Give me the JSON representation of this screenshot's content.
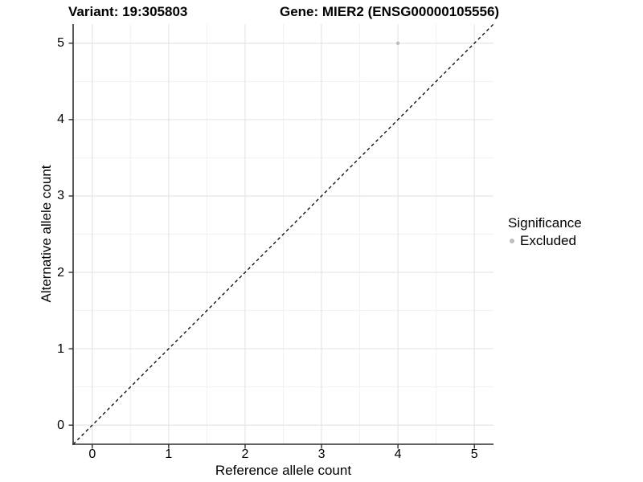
{
  "titles": {
    "variant": "Variant: 19:305803",
    "gene": "Gene: MIER2 (ENSG00000105556)"
  },
  "axes": {
    "x_title": "Reference allele count",
    "y_title": "Alternative allele count"
  },
  "legend": {
    "title": "Significance",
    "entries": [
      {
        "label": "Excluded",
        "color": "#bdbdbd"
      }
    ]
  },
  "chart_data": {
    "type": "scatter",
    "title": "Variant: 19:305803   Gene: MIER2 (ENSG00000105556)",
    "xlabel": "Reference allele count",
    "ylabel": "Alternative allele count",
    "xlim": [
      -0.25,
      5.25
    ],
    "ylim": [
      -0.25,
      5.25
    ],
    "xticks": [
      0,
      1,
      2,
      3,
      4,
      5
    ],
    "yticks": [
      0,
      1,
      2,
      3,
      4,
      5
    ],
    "minor_ticks_x": [
      0.5,
      1.5,
      2.5,
      3.5,
      4.5
    ],
    "minor_ticks_y": [
      0.5,
      1.5,
      2.5,
      3.5,
      4.5
    ],
    "grid": "major+minor",
    "legend_position": "right",
    "series": [
      {
        "name": "Excluded",
        "color": "#bdbdbd",
        "marker_radius": 2.2,
        "points": [
          {
            "x": 4,
            "y": 5
          }
        ]
      }
    ],
    "reference_line": {
      "type": "abline",
      "slope": 1,
      "intercept": 0,
      "style": "dashed",
      "dash": "4 3.5",
      "color": "#000000",
      "width": 1.3
    },
    "colors": {
      "grid_major": "#e3e3e3",
      "grid_minor": "#f1f1f1",
      "axis": "#2f2f2f",
      "text": "#000000"
    }
  }
}
